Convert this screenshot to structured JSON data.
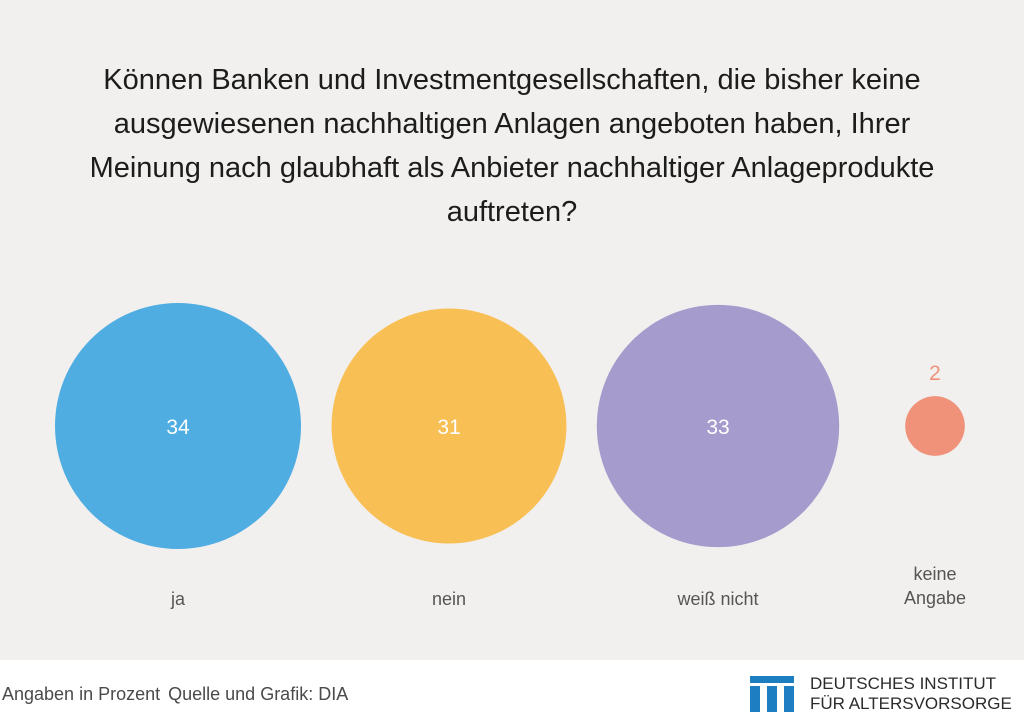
{
  "title": "Können Banken und Investmentgesellschaften, die bisher keine ausgewiesenen nachhaltigen Anlagen angeboten haben, Ihrer Meinung nach glaubhaft als Anbieter nachhaltiger Anlageprodukte auftreten?",
  "chart_data": {
    "type": "bubble",
    "unit": "Prozent",
    "categories": [
      "ja",
      "nein",
      "weiß nicht",
      "keine Angabe"
    ],
    "values": [
      34,
      31,
      33,
      2
    ],
    "colors": [
      "#4fade2",
      "#f8bf54",
      "#a59ccd",
      "#f0917a"
    ]
  },
  "footer": {
    "note": "Angaben in Prozent",
    "source": "Quelle und Grafik: DIA"
  },
  "logo": {
    "line1": "DEUTSCHES INSTITUT",
    "line2": "FÜR ALTERSVORSORGE",
    "color": "#1d7fc1"
  }
}
